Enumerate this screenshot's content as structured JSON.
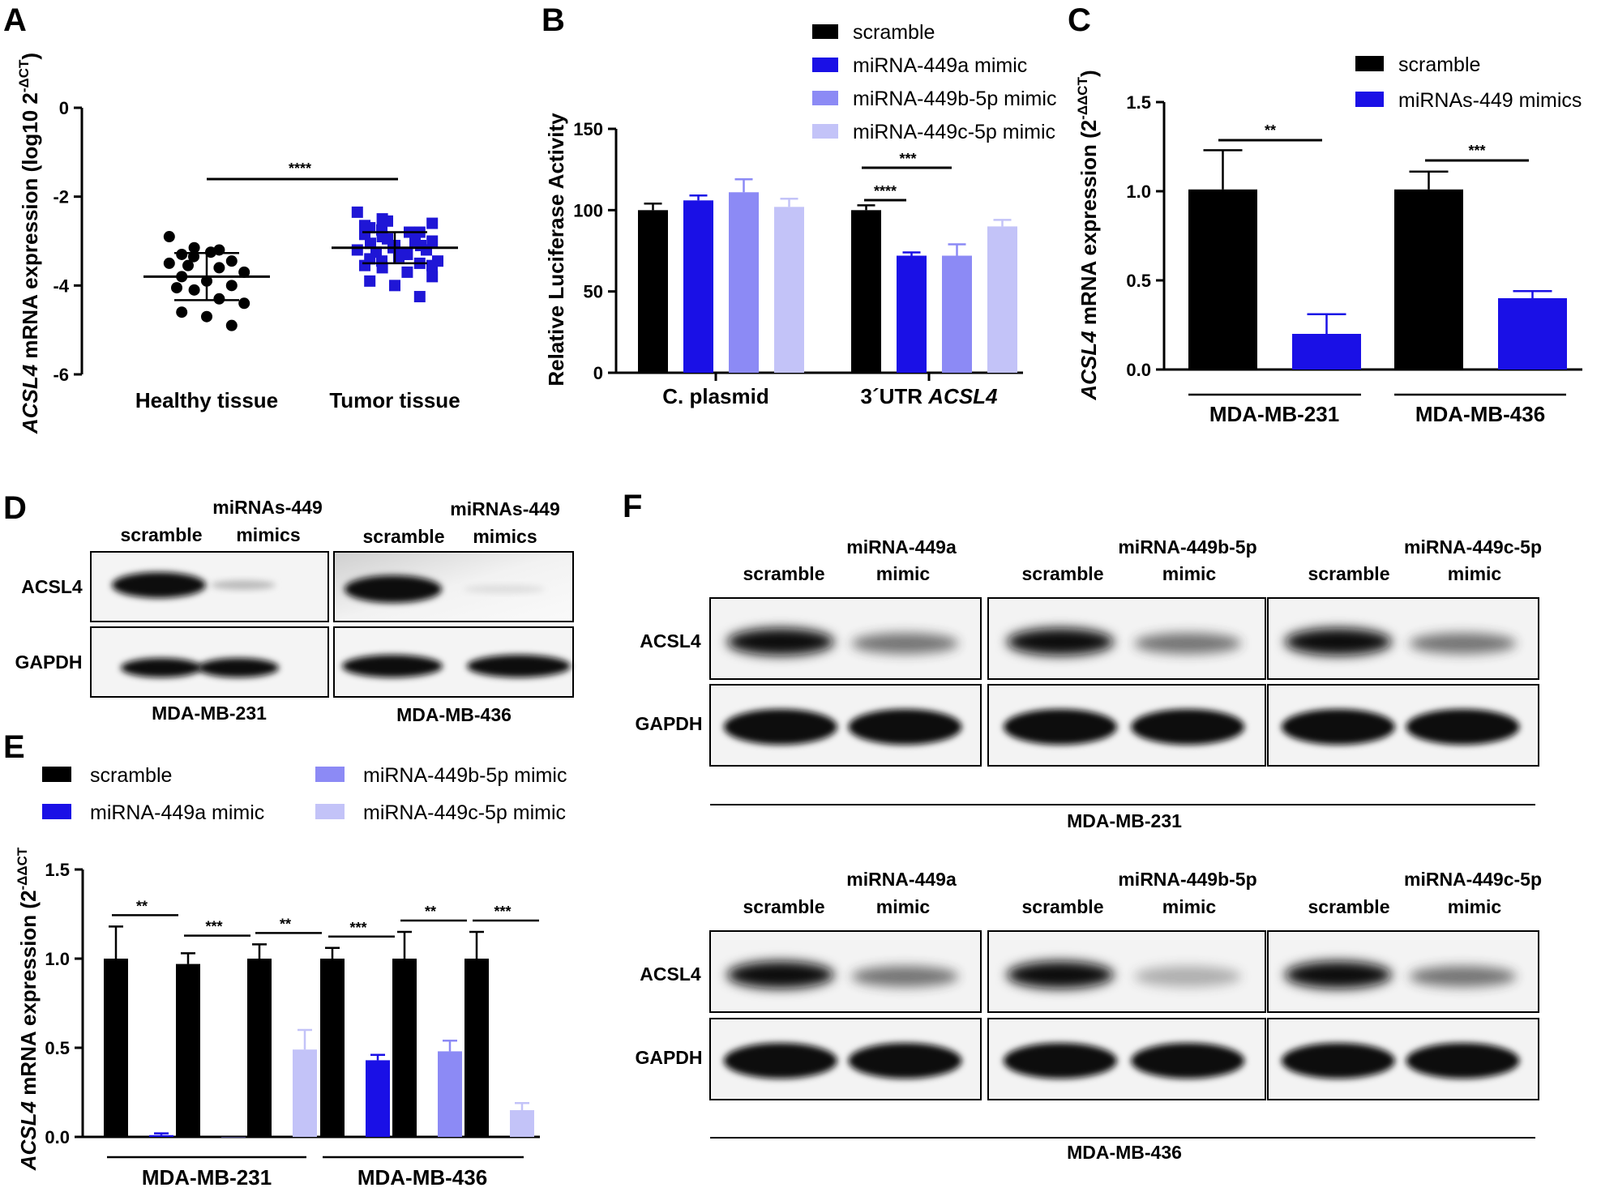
{
  "colors": {
    "scramble": "#000000",
    "mirna449a": "#1a10e6",
    "mirna449b": "#8c8af5",
    "mirna449c": "#c3c3f8",
    "tumor_marker": "#1f16d6"
  },
  "panel_letters": [
    "A",
    "B",
    "C",
    "D",
    "E",
    "F"
  ],
  "chart_data": [
    {
      "panel": "A",
      "type": "scatter",
      "ylabel_italic": "ACSL4",
      "ylabel_rest": " mRNA expression (log10 2",
      "ylabel_sup": "-ΔCT",
      "ylabel_close": ")",
      "ylim": [
        -6,
        0
      ],
      "yticks": [
        "0",
        "-2",
        "-4",
        "-6"
      ],
      "ytick_values": [
        0,
        -2,
        -4,
        -6
      ],
      "categories": [
        "Healthy tissue",
        "Tumor tissue"
      ],
      "significance": "****",
      "series": [
        {
          "name": "Healthy tissue",
          "marker": "circle",
          "mean": -3.8,
          "sd": 0.53,
          "values": [
            -2.9,
            -3.15,
            -3.2,
            -3.25,
            -3.3,
            -3.35,
            -3.45,
            -3.5,
            -3.55,
            -3.6,
            -3.7,
            -3.8,
            -3.9,
            -4.0,
            -4.05,
            -4.1,
            -4.3,
            -4.4,
            -4.6,
            -4.7,
            -4.9
          ]
        },
        {
          "name": "Tumor tissue",
          "marker": "square",
          "mean": -3.15,
          "sd": 0.35,
          "values": [
            -2.35,
            -2.5,
            -2.55,
            -2.6,
            -2.7,
            -2.75,
            -2.8,
            -2.85,
            -2.9,
            -2.95,
            -3.0,
            -3.05,
            -3.1,
            -3.15,
            -3.2,
            -3.25,
            -3.3,
            -3.35,
            -3.4,
            -3.45,
            -3.5,
            -3.55,
            -3.6,
            -3.7,
            -3.8,
            -3.9,
            -4.0,
            -4.25,
            -2.65,
            -3.0,
            -3.2,
            -3.45,
            -2.8,
            -3.1,
            -3.55,
            -3.3
          ]
        }
      ]
    },
    {
      "panel": "B",
      "type": "bar",
      "ylabel": "Relative Luciferase Activity",
      "ylim": [
        0,
        150
      ],
      "yticks": [
        "0",
        "50",
        "100",
        "150"
      ],
      "ytick_values": [
        0,
        50,
        100,
        150
      ],
      "categories": [
        "C. plasmid",
        "3´UTR "
      ],
      "category_italic": [
        "",
        "ACSL4"
      ],
      "legend": [
        "scramble",
        "miRNA-449a mimic",
        "miRNA-449b-5p mimic",
        "miRNA-449c-5p mimic"
      ],
      "series": [
        {
          "name": "scramble",
          "values": [
            100,
            100
          ],
          "err": [
            4,
            3
          ]
        },
        {
          "name": "miRNA-449a mimic",
          "values": [
            106,
            72
          ],
          "err": [
            3,
            2
          ]
        },
        {
          "name": "miRNA-449b-5p mimic",
          "values": [
            111,
            72
          ],
          "err": [
            8,
            7
          ]
        },
        {
          "name": "miRNA-449c-5p mimic",
          "values": [
            102,
            90
          ],
          "err": [
            5,
            4
          ]
        }
      ],
      "significance": [
        "****",
        "***"
      ]
    },
    {
      "panel": "C",
      "type": "bar",
      "ylabel_italic": "ACSL4",
      "ylabel_rest": " mRNA expression (2",
      "ylabel_sup": "-ΔΔCT",
      "ylabel_close": ")",
      "ylim": [
        0,
        1.5
      ],
      "yticks": [
        "0.0",
        "0.5",
        "1.0",
        "1.5"
      ],
      "ytick_values": [
        0,
        0.5,
        1.0,
        1.5
      ],
      "categories": [
        "MDA-MB-231",
        "MDA-MB-436"
      ],
      "legend": [
        "scramble",
        "miRNAs-449 mimics"
      ],
      "series": [
        {
          "name": "scramble",
          "values": [
            1.01,
            1.01
          ],
          "err": [
            0.22,
            0.1
          ]
        },
        {
          "name": "miRNAs-449 mimics",
          "values": [
            0.2,
            0.4
          ],
          "err": [
            0.11,
            0.04
          ]
        }
      ],
      "significance": [
        "**",
        "***"
      ]
    },
    {
      "panel": "E",
      "type": "bar",
      "ylabel_italic": "ACSL4",
      "ylabel_rest": " mRNA expression (2",
      "ylabel_sup": "-ΔΔCT",
      "ylim": [
        0,
        1.5
      ],
      "yticks": [
        "0.0",
        "0.5",
        "1.0",
        "1.5"
      ],
      "ytick_values": [
        0,
        0.5,
        1.0,
        1.5
      ],
      "categories": [
        "MDA-MB-231",
        "MDA-MB-436"
      ],
      "legend": [
        "scramble",
        "miRNA-449a mimic",
        "miRNA-449b-5p mimic",
        "miRNA-449c-5p mimic"
      ],
      "pairs": [
        {
          "cell": "MDA-MB-231",
          "mimic": "miRNA-449a mimic",
          "scramble": 1.0,
          "scramble_err": 0.18,
          "value": 0.01,
          "err": 0.01,
          "sig": "**"
        },
        {
          "cell": "MDA-MB-231",
          "mimic": "miRNA-449b-5p mimic",
          "scramble": 0.97,
          "scramble_err": 0.06,
          "value": 0.0,
          "err": 0.0,
          "sig": "***"
        },
        {
          "cell": "MDA-MB-231",
          "mimic": "miRNA-449c-5p mimic",
          "scramble": 1.0,
          "scramble_err": 0.08,
          "value": 0.49,
          "err": 0.11,
          "sig": "**"
        },
        {
          "cell": "MDA-MB-436",
          "mimic": "miRNA-449a mimic",
          "scramble": 1.0,
          "scramble_err": 0.06,
          "value": 0.43,
          "err": 0.03,
          "sig": "***"
        },
        {
          "cell": "MDA-MB-436",
          "mimic": "miRNA-449b-5p mimic",
          "scramble": 1.0,
          "scramble_err": 0.15,
          "value": 0.48,
          "err": 0.06,
          "sig": "**"
        },
        {
          "cell": "MDA-MB-436",
          "mimic": "miRNA-449c-5p mimic",
          "scramble": 1.0,
          "scramble_err": 0.15,
          "value": 0.15,
          "err": 0.04,
          "sig": "***"
        }
      ]
    }
  ],
  "blots": {
    "D": {
      "lane_labels": [
        "scramble",
        "miRNAs-449",
        "mimics",
        "scramble",
        "miRNAs-449",
        "mimics"
      ],
      "rows": [
        "ACSL4",
        "GAPDH"
      ],
      "cells": [
        "MDA-MB-231",
        "MDA-MB-436"
      ]
    },
    "F": {
      "top_labels": [
        "scramble",
        "miRNA-449a",
        "mimic",
        "scramble",
        "miRNA-449b-5p",
        "mimic",
        "scramble",
        "miRNA-449c-5p",
        "mimic"
      ],
      "rows": [
        "ACSL4",
        "GAPDH"
      ],
      "cells": [
        "MDA-MB-231",
        "MDA-MB-436"
      ]
    }
  }
}
